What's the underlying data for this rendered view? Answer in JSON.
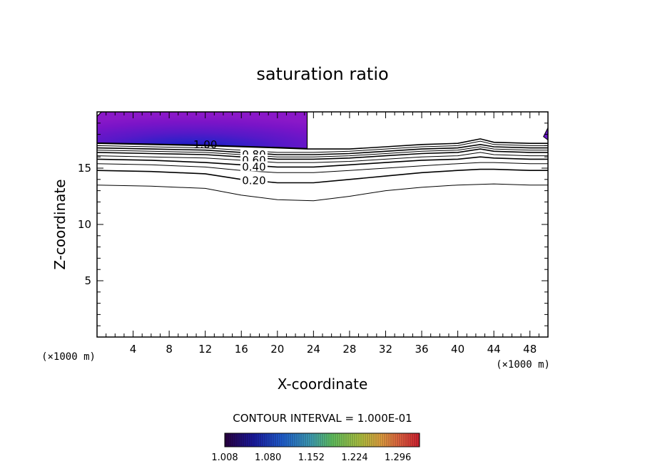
{
  "chart_data": {
    "type": "contour",
    "title": "saturation ratio",
    "xlabel": "X-coordinate",
    "ylabel": "Z-coordinate",
    "x_unit": "(×1000 m)",
    "y_unit": "(×1000 m)",
    "xlim": [
      0,
      50
    ],
    "ylim": [
      0,
      20
    ],
    "x_ticks": [
      4,
      8,
      12,
      16,
      20,
      24,
      28,
      32,
      36,
      40,
      44,
      48
    ],
    "y_ticks": [
      5,
      10,
      15
    ],
    "contour_interval_text": "CONTOUR INTERVAL = 1.000E-01",
    "contour_labels": [
      "1.00",
      "0.80",
      "0.60",
      "0.40",
      "0.20"
    ],
    "contours": [
      {
        "level": 0.1,
        "x": [
          0,
          6,
          12,
          16,
          20,
          24,
          28,
          32,
          36,
          40,
          44,
          48,
          50
        ],
        "z": [
          13.5,
          13.4,
          13.2,
          12.6,
          12.2,
          12.1,
          12.5,
          13.0,
          13.3,
          13.5,
          13.6,
          13.5,
          13.5
        ]
      },
      {
        "level": 0.2,
        "x": [
          0,
          6,
          12,
          16,
          20,
          24,
          28,
          32,
          36,
          40,
          42.5,
          44,
          48,
          50
        ],
        "z": [
          14.8,
          14.7,
          14.5,
          14.0,
          13.7,
          13.7,
          14.0,
          14.3,
          14.6,
          14.8,
          14.9,
          14.9,
          14.8,
          14.8
        ]
      },
      {
        "level": 0.3,
        "x": [
          0,
          6,
          12,
          16,
          20,
          24,
          28,
          32,
          36,
          40,
          42.5,
          44,
          48,
          50
        ],
        "z": [
          15.4,
          15.3,
          15.1,
          14.8,
          14.6,
          14.6,
          14.8,
          15.0,
          15.2,
          15.4,
          15.5,
          15.5,
          15.4,
          15.4
        ]
      },
      {
        "level": 0.4,
        "x": [
          0,
          6,
          12,
          16,
          20,
          24,
          28,
          32,
          36,
          40,
          42.5,
          44,
          48,
          50
        ],
        "z": [
          15.8,
          15.7,
          15.5,
          15.3,
          15.1,
          15.1,
          15.3,
          15.5,
          15.7,
          15.8,
          16.0,
          15.9,
          15.8,
          15.8
        ]
      },
      {
        "level": 0.5,
        "x": [
          0,
          6,
          12,
          16,
          20,
          24,
          28,
          32,
          36,
          40,
          42.5,
          44,
          48,
          50
        ],
        "z": [
          16.1,
          16.0,
          15.9,
          15.7,
          15.5,
          15.5,
          15.6,
          15.8,
          16.0,
          16.1,
          16.4,
          16.2,
          16.1,
          16.1
        ]
      },
      {
        "level": 0.6,
        "x": [
          0,
          6,
          12,
          16,
          20,
          24,
          28,
          32,
          36,
          40,
          42.5,
          44,
          48,
          50
        ],
        "z": [
          16.4,
          16.3,
          16.2,
          16.0,
          15.8,
          15.8,
          15.9,
          16.1,
          16.3,
          16.4,
          16.7,
          16.5,
          16.4,
          16.4
        ]
      },
      {
        "level": 0.7,
        "x": [
          0,
          6,
          12,
          16,
          20,
          24,
          28,
          32,
          36,
          40,
          42.5,
          44,
          48,
          50
        ],
        "z": [
          16.6,
          16.5,
          16.4,
          16.2,
          16.0,
          16.0,
          16.1,
          16.3,
          16.5,
          16.6,
          16.9,
          16.7,
          16.6,
          16.6
        ]
      },
      {
        "level": 0.8,
        "x": [
          0,
          6,
          12,
          16,
          20,
          24,
          28,
          32,
          36,
          40,
          42.5,
          44,
          48,
          50
        ],
        "z": [
          16.8,
          16.7,
          16.6,
          16.4,
          16.2,
          16.2,
          16.3,
          16.5,
          16.7,
          16.8,
          17.1,
          16.9,
          16.8,
          16.8
        ]
      },
      {
        "level": 0.9,
        "x": [
          0,
          6,
          12,
          16,
          20,
          24,
          28,
          32,
          36,
          40,
          42.5,
          44,
          48,
          50
        ],
        "z": [
          17.0,
          16.9,
          16.8,
          16.6,
          16.4,
          16.4,
          16.5,
          16.7,
          16.9,
          17.0,
          17.4,
          17.1,
          17.0,
          17.0
        ]
      },
      {
        "level": 1.0,
        "x": [
          0,
          6,
          12,
          16,
          20,
          23.3,
          28,
          32,
          36,
          40,
          42.5,
          44,
          48,
          50
        ],
        "z": [
          17.2,
          17.1,
          17.0,
          16.9,
          16.8,
          16.7,
          16.7,
          16.9,
          17.1,
          17.2,
          17.6,
          17.3,
          17.2,
          17.2
        ]
      }
    ],
    "shaded_region": {
      "x_start": 0,
      "x_end": 23.3,
      "description_levels": [
        1.008,
        1.08,
        1.152,
        1.224,
        1.296
      ],
      "peak": {
        "x": 12,
        "z": 17.5
      }
    },
    "colorbar": {
      "min": 1.008,
      "max": 1.332,
      "tick_labels": [
        "1.008",
        "1.080",
        "1.152",
        "1.224",
        "1.296"
      ],
      "colors": [
        "#2a0040",
        "#1a1aa0",
        "#2060d0",
        "#40a0b0",
        "#60c060",
        "#b0c040",
        "#e0a040",
        "#e06040",
        "#d02030"
      ]
    }
  }
}
